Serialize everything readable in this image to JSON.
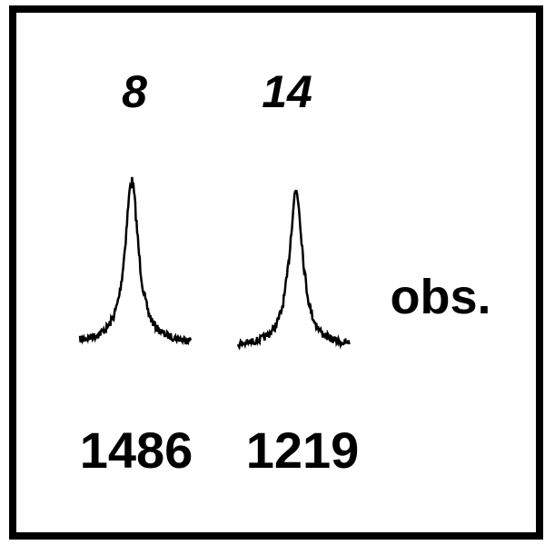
{
  "peaks": [
    {
      "label": "8",
      "value": "1486"
    },
    {
      "label": "14",
      "value": "1219"
    }
  ],
  "side_label": "obs."
}
